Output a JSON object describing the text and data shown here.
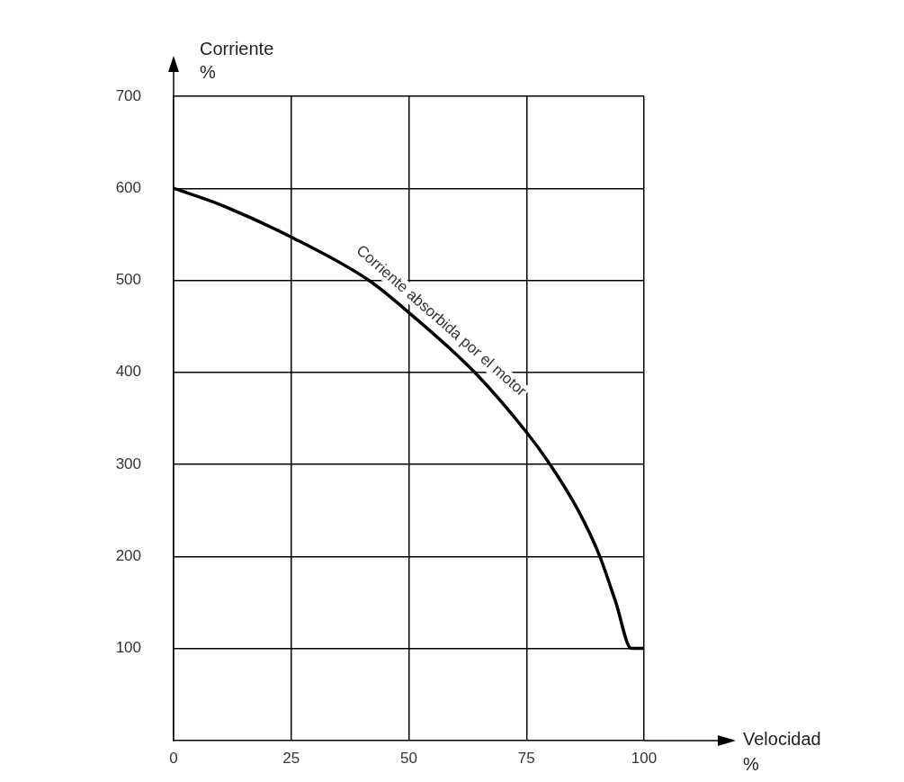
{
  "chart_data": {
    "type": "line",
    "xlabel": "Velocidad\n%",
    "ylabel": "Corriente\n%",
    "x": [
      0,
      10,
      25,
      41.5,
      50,
      64,
      75,
      80,
      86,
      90.6,
      94,
      97.3,
      100
    ],
    "series": [
      {
        "color": "#000000",
        "values": [
          600,
          582,
          547,
          500,
          465,
          400,
          335,
          300,
          250,
          200,
          150,
          100,
          100
        ]
      }
    ],
    "xlim": [
      0,
      100
    ],
    "xticks": [
      0,
      25,
      50,
      75,
      100
    ],
    "ylim": [
      0,
      700
    ],
    "yticks": [
      100,
      200,
      300,
      400,
      500,
      600,
      700
    ],
    "grid": true,
    "legend": false,
    "marker": "none",
    "line_style": "solid",
    "annotations": [
      {
        "text": "Corriente absorbida por el motor",
        "x": 55,
        "y": 445
      }
    ]
  }
}
